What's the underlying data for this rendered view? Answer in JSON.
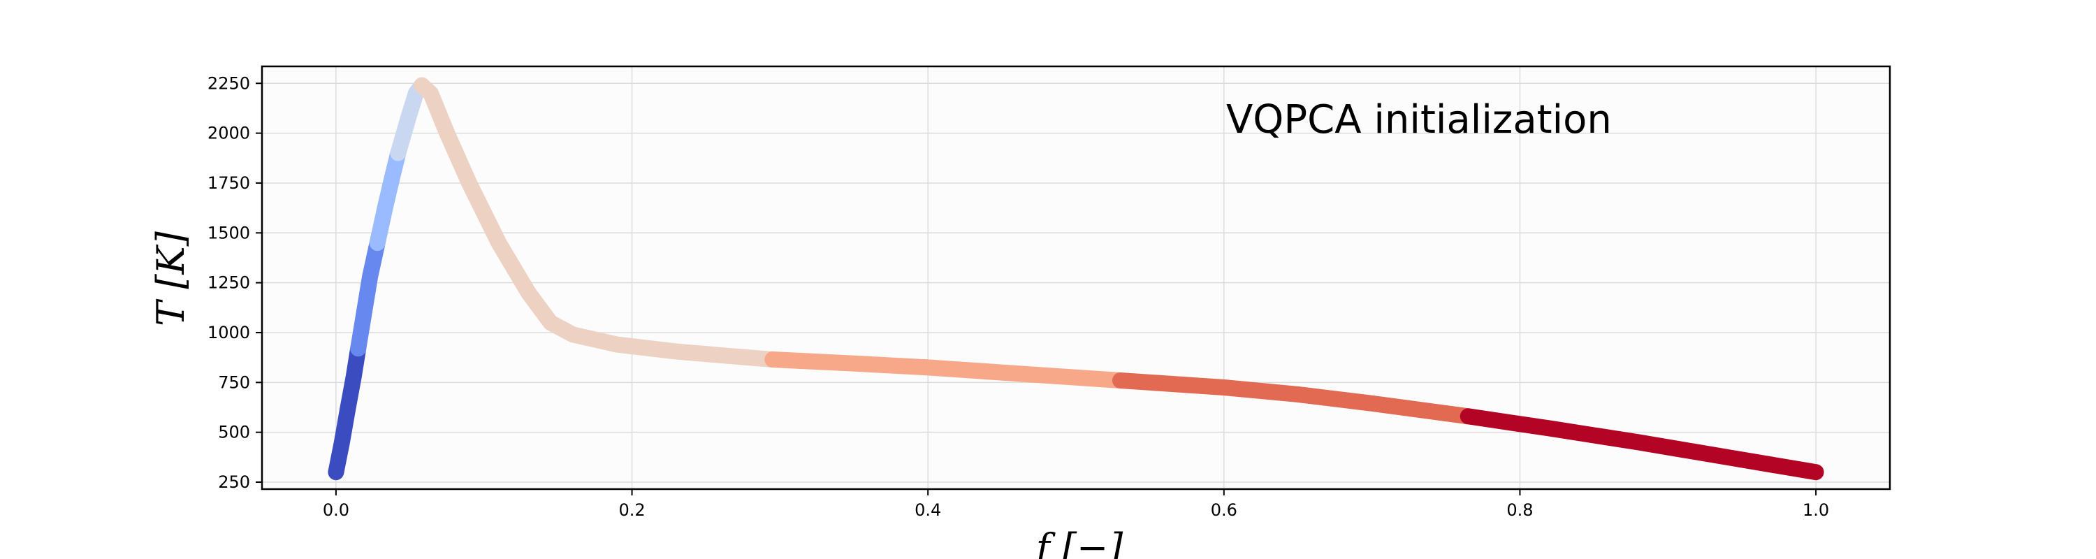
{
  "chart_data": {
    "type": "line",
    "title": "",
    "annotation": "VQPCA initialization",
    "xlabel": "f [−]",
    "ylabel": "T [K]",
    "xlim": [
      -0.05,
      1.05
    ],
    "ylim": [
      215,
      2335
    ],
    "xticks": [
      0.0,
      0.2,
      0.4,
      0.6,
      0.8,
      1.0
    ],
    "xtick_labels": [
      "0.0",
      "0.2",
      "0.4",
      "0.6",
      "0.8",
      "1.0"
    ],
    "yticks": [
      250,
      500,
      750,
      1000,
      1250,
      1500,
      1750,
      2000,
      2250
    ],
    "ytick_labels": [
      "250",
      "500",
      "750",
      "1000",
      "1250",
      "1500",
      "1750",
      "2000",
      "2250"
    ],
    "grid": true,
    "legend": "none",
    "series": [
      {
        "color": "#3b4cc0",
        "points": [
          [
            0.0,
            300
          ],
          [
            0.004,
            450
          ],
          [
            0.008,
            620
          ],
          [
            0.012,
            780
          ],
          [
            0.015,
            920
          ]
        ]
      },
      {
        "color": "#6788ee",
        "points": [
          [
            0.015,
            920
          ],
          [
            0.019,
            1100
          ],
          [
            0.023,
            1280
          ],
          [
            0.028,
            1450
          ]
        ]
      },
      {
        "color": "#9abbff",
        "points": [
          [
            0.028,
            1450
          ],
          [
            0.033,
            1620
          ],
          [
            0.038,
            1780
          ],
          [
            0.042,
            1900
          ]
        ]
      },
      {
        "color": "#c9d7f0",
        "points": [
          [
            0.042,
            1900
          ],
          [
            0.049,
            2080
          ],
          [
            0.054,
            2200
          ],
          [
            0.058,
            2240
          ]
        ]
      },
      {
        "color": "#edd1c2",
        "points": [
          [
            0.058,
            2240
          ],
          [
            0.064,
            2200
          ],
          [
            0.075,
            2000
          ],
          [
            0.09,
            1750
          ],
          [
            0.11,
            1450
          ],
          [
            0.13,
            1200
          ],
          [
            0.145,
            1050
          ],
          [
            0.16,
            990
          ],
          [
            0.19,
            940
          ],
          [
            0.23,
            905
          ],
          [
            0.27,
            880
          ],
          [
            0.295,
            865
          ]
        ]
      },
      {
        "color": "#f7a889",
        "points": [
          [
            0.295,
            865
          ],
          [
            0.35,
            845
          ],
          [
            0.4,
            825
          ],
          [
            0.45,
            800
          ],
          [
            0.53,
            760
          ]
        ]
      },
      {
        "color": "#e26952",
        "points": [
          [
            0.53,
            760
          ],
          [
            0.6,
            725
          ],
          [
            0.65,
            690
          ],
          [
            0.7,
            645
          ],
          [
            0.765,
            580
          ]
        ]
      },
      {
        "color": "#b40426",
        "points": [
          [
            0.765,
            580
          ],
          [
            0.82,
            520
          ],
          [
            0.88,
            450
          ],
          [
            0.94,
            375
          ],
          [
            1.0,
            300
          ]
        ]
      }
    ]
  }
}
